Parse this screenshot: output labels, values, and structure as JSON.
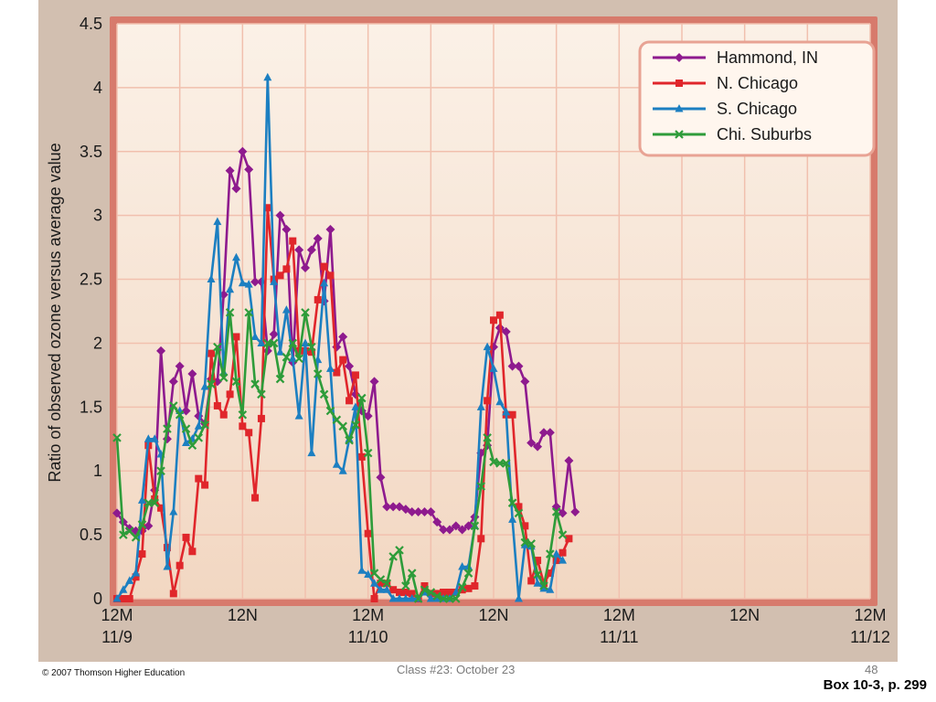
{
  "footer": {
    "copyright": "© 2007 Thomson Higher Education",
    "center_text": "Class #23:  October 23",
    "page_number": "48",
    "box_reference": "Box 10-3, p. 299"
  },
  "colors": {
    "panel_background": "#d2bfb0",
    "plot_border": "#d77a6c",
    "plot_fill_top": "#fbf1e7",
    "plot_fill_bottom": "#f2d7c2",
    "grid": "#f1c0ae",
    "legend_border": "#e8a394"
  },
  "chart_data": {
    "type": "line",
    "title": "",
    "xlabel": "",
    "ylabel": "Ratio of observed ozone versus average value",
    "xlim": [
      0,
      72
    ],
    "ylim": [
      0,
      4.5
    ],
    "grid": true,
    "legend_position": "top-right",
    "y_ticks": [
      "0",
      "0.5",
      "1",
      "1.5",
      "2",
      "2.5",
      "3",
      "3.5",
      "4",
      "4.5"
    ],
    "x_ticks": [
      {
        "x": 0,
        "line1": "12M",
        "line2": "11/9"
      },
      {
        "x": 12,
        "line1": "12N",
        "line2": ""
      },
      {
        "x": 24,
        "line1": "12M",
        "line2": "11/10"
      },
      {
        "x": 36,
        "line1": "12N",
        "line2": ""
      },
      {
        "x": 48,
        "line1": "12M",
        "line2": "11/11"
      },
      {
        "x": 60,
        "line1": "12N",
        "line2": ""
      },
      {
        "x": 72,
        "line1": "12M",
        "line2": "11/12"
      }
    ],
    "series": [
      {
        "name": "Hammond, IN",
        "color": "#8e1a8e",
        "marker": "diamond",
        "points": [
          [
            0,
            0.67
          ],
          [
            0.6,
            0.6
          ],
          [
            1.2,
            0.55
          ],
          [
            1.8,
            0.53
          ],
          [
            2.4,
            0.53
          ],
          [
            3,
            0.57
          ],
          [
            3.6,
            0.85
          ],
          [
            4.2,
            1.94
          ],
          [
            4.8,
            1.25
          ],
          [
            5.4,
            1.7
          ],
          [
            6,
            1.82
          ],
          [
            6.6,
            1.47
          ],
          [
            7.2,
            1.76
          ],
          [
            7.8,
            1.43
          ],
          [
            8.4,
            1.37
          ],
          [
            9,
            1.72
          ],
          [
            9.6,
            1.7
          ],
          [
            10.2,
            2.38
          ],
          [
            10.8,
            3.35
          ],
          [
            11.4,
            3.21
          ],
          [
            12,
            3.5
          ],
          [
            12.6,
            3.36
          ],
          [
            13.2,
            2.48
          ],
          [
            13.8,
            2.48
          ],
          [
            14.4,
            1.94
          ],
          [
            15,
            2.07
          ],
          [
            15.6,
            3.0
          ],
          [
            16.2,
            2.89
          ],
          [
            16.8,
            1.85
          ],
          [
            17.4,
            2.73
          ],
          [
            18,
            2.59
          ],
          [
            18.6,
            2.73
          ],
          [
            19.2,
            2.82
          ],
          [
            19.8,
            2.33
          ],
          [
            20.4,
            2.89
          ],
          [
            21,
            1.97
          ],
          [
            21.6,
            2.05
          ],
          [
            22.2,
            1.82
          ],
          [
            22.8,
            1.6
          ],
          [
            23.4,
            1.47
          ],
          [
            24,
            1.43
          ],
          [
            24.6,
            1.7
          ],
          [
            25.2,
            0.95
          ],
          [
            25.8,
            0.72
          ],
          [
            26.4,
            0.72
          ],
          [
            27,
            0.72
          ],
          [
            27.6,
            0.7
          ],
          [
            28.2,
            0.68
          ],
          [
            28.8,
            0.68
          ],
          [
            29.4,
            0.68
          ],
          [
            30,
            0.68
          ],
          [
            30.6,
            0.6
          ],
          [
            31.2,
            0.54
          ],
          [
            31.8,
            0.54
          ],
          [
            32.4,
            0.57
          ],
          [
            33,
            0.54
          ],
          [
            33.6,
            0.57
          ],
          [
            34.2,
            0.64
          ],
          [
            34.8,
            1.14
          ],
          [
            35.4,
            1.2
          ],
          [
            36,
            1.97
          ],
          [
            36.6,
            2.12
          ],
          [
            37.2,
            2.09
          ],
          [
            37.8,
            1.82
          ],
          [
            38.4,
            1.82
          ],
          [
            39,
            1.7
          ],
          [
            39.6,
            1.22
          ],
          [
            40.2,
            1.19
          ],
          [
            40.8,
            1.3
          ],
          [
            41.4,
            1.3
          ],
          [
            42,
            0.72
          ],
          [
            42.6,
            0.67
          ],
          [
            43.2,
            1.08
          ],
          [
            43.8,
            0.68
          ]
        ]
      },
      {
        "name": "N. Chicago",
        "color": "#e0262b",
        "marker": "square",
        "points": [
          [
            0,
            0.0
          ],
          [
            0.6,
            0.0
          ],
          [
            1.2,
            0.0
          ],
          [
            1.8,
            0.17
          ],
          [
            2.4,
            0.35
          ],
          [
            3,
            1.2
          ],
          [
            3.6,
            0.78
          ],
          [
            4.2,
            0.71
          ],
          [
            4.8,
            0.4
          ],
          [
            5.4,
            0.04
          ],
          [
            6,
            0.26
          ],
          [
            6.6,
            0.48
          ],
          [
            7.2,
            0.37
          ],
          [
            7.8,
            0.94
          ],
          [
            8.4,
            0.89
          ],
          [
            9,
            1.92
          ],
          [
            9.6,
            1.51
          ],
          [
            10.2,
            1.44
          ],
          [
            10.8,
            1.6
          ],
          [
            11.4,
            2.05
          ],
          [
            12,
            1.35
          ],
          [
            12.6,
            1.3
          ],
          [
            13.2,
            0.79
          ],
          [
            13.8,
            1.41
          ],
          [
            14.4,
            3.06
          ],
          [
            15,
            2.5
          ],
          [
            15.6,
            2.53
          ],
          [
            16.2,
            2.58
          ],
          [
            16.8,
            2.8
          ],
          [
            17.4,
            1.94
          ],
          [
            18,
            1.94
          ],
          [
            18.6,
            1.93
          ],
          [
            19.2,
            2.34
          ],
          [
            19.8,
            2.6
          ],
          [
            20.4,
            2.53
          ],
          [
            21,
            1.77
          ],
          [
            21.6,
            1.87
          ],
          [
            22.2,
            1.55
          ],
          [
            22.8,
            1.75
          ],
          [
            23.4,
            1.11
          ],
          [
            24,
            0.51
          ],
          [
            24.6,
            0.0
          ],
          [
            25.2,
            0.12
          ],
          [
            25.8,
            0.12
          ],
          [
            26.4,
            0.07
          ],
          [
            27,
            0.05
          ],
          [
            27.6,
            0.05
          ],
          [
            28.2,
            0.04
          ],
          [
            28.8,
            0.0
          ],
          [
            29.4,
            0.1
          ],
          [
            30,
            0.04
          ],
          [
            30.6,
            0.04
          ],
          [
            31.2,
            0.05
          ],
          [
            31.8,
            0.05
          ],
          [
            32.4,
            0.05
          ],
          [
            33,
            0.07
          ],
          [
            33.6,
            0.08
          ],
          [
            34.2,
            0.1
          ],
          [
            34.8,
            0.47
          ],
          [
            35.4,
            1.55
          ],
          [
            36,
            2.18
          ],
          [
            36.6,
            2.22
          ],
          [
            37.2,
            1.44
          ],
          [
            37.8,
            1.44
          ],
          [
            38.4,
            0.72
          ],
          [
            39,
            0.57
          ],
          [
            39.6,
            0.14
          ],
          [
            40.2,
            0.3
          ],
          [
            40.8,
            0.12
          ],
          [
            41.4,
            0.2
          ],
          [
            42,
            0.3
          ],
          [
            42.6,
            0.36
          ],
          [
            43.2,
            0.47
          ]
        ]
      },
      {
        "name": "S. Chicago",
        "color": "#1c7fc1",
        "marker": "triangle",
        "points": [
          [
            0,
            0.0
          ],
          [
            0.6,
            0.07
          ],
          [
            1.2,
            0.14
          ],
          [
            1.8,
            0.2
          ],
          [
            2.4,
            0.77
          ],
          [
            3,
            1.25
          ],
          [
            3.6,
            1.25
          ],
          [
            4.2,
            1.13
          ],
          [
            4.8,
            0.25
          ],
          [
            5.4,
            0.68
          ],
          [
            6,
            1.47
          ],
          [
            6.6,
            1.22
          ],
          [
            7.2,
            1.25
          ],
          [
            7.8,
            1.35
          ],
          [
            8.4,
            1.66
          ],
          [
            9,
            2.5
          ],
          [
            9.6,
            2.95
          ],
          [
            10.2,
            1.77
          ],
          [
            10.8,
            2.42
          ],
          [
            11.4,
            2.67
          ],
          [
            12,
            2.47
          ],
          [
            12.6,
            2.46
          ],
          [
            13.2,
            2.05
          ],
          [
            13.8,
            2.0
          ],
          [
            14.4,
            4.08
          ],
          [
            15,
            2.48
          ],
          [
            15.6,
            1.93
          ],
          [
            16.2,
            2.26
          ],
          [
            16.8,
            1.88
          ],
          [
            17.4,
            1.43
          ],
          [
            18,
            2.0
          ],
          [
            18.6,
            1.14
          ],
          [
            19.2,
            1.87
          ],
          [
            19.8,
            2.47
          ],
          [
            20.4,
            1.8
          ],
          [
            21,
            1.05
          ],
          [
            21.6,
            1.0
          ],
          [
            22.2,
            1.25
          ],
          [
            22.8,
            1.5
          ],
          [
            23.4,
            0.22
          ],
          [
            24,
            0.19
          ],
          [
            24.6,
            0.12
          ],
          [
            25.2,
            0.07
          ],
          [
            25.8,
            0.07
          ],
          [
            26.4,
            0.0
          ],
          [
            27,
            0.0
          ],
          [
            27.6,
            0.0
          ],
          [
            28.2,
            0.0
          ],
          [
            28.8,
            0.0
          ],
          [
            29.4,
            0.05
          ],
          [
            30,
            0.0
          ],
          [
            30.6,
            0.0
          ],
          [
            31.2,
            0.0
          ],
          [
            31.8,
            0.0
          ],
          [
            32.4,
            0.05
          ],
          [
            33,
            0.25
          ],
          [
            33.6,
            0.25
          ],
          [
            34.2,
            0.57
          ],
          [
            34.8,
            1.5
          ],
          [
            35.4,
            1.97
          ],
          [
            36,
            1.8
          ],
          [
            36.6,
            1.54
          ],
          [
            37.2,
            1.46
          ],
          [
            37.8,
            0.62
          ],
          [
            38.4,
            0.0
          ],
          [
            39,
            0.42
          ],
          [
            39.6,
            0.41
          ],
          [
            40.2,
            0.12
          ],
          [
            40.8,
            0.08
          ],
          [
            41.4,
            0.07
          ],
          [
            42,
            0.35
          ],
          [
            42.6,
            0.3
          ]
        ]
      },
      {
        "name": "Chi. Suburbs",
        "color": "#2e9c3a",
        "marker": "x",
        "points": [
          [
            0,
            1.26
          ],
          [
            0.6,
            0.5
          ],
          [
            1.2,
            0.53
          ],
          [
            1.8,
            0.48
          ],
          [
            2.4,
            0.58
          ],
          [
            3,
            0.75
          ],
          [
            3.6,
            0.75
          ],
          [
            4.2,
            1.0
          ],
          [
            4.8,
            1.33
          ],
          [
            5.4,
            1.51
          ],
          [
            6,
            1.44
          ],
          [
            6.6,
            1.33
          ],
          [
            7.2,
            1.2
          ],
          [
            7.8,
            1.26
          ],
          [
            8.4,
            1.36
          ],
          [
            9,
            1.68
          ],
          [
            9.6,
            1.97
          ],
          [
            10.2,
            1.73
          ],
          [
            10.8,
            2.24
          ],
          [
            11.4,
            1.7
          ],
          [
            12,
            1.44
          ],
          [
            12.6,
            2.24
          ],
          [
            13.2,
            1.68
          ],
          [
            13.8,
            1.6
          ],
          [
            14.4,
            2.0
          ],
          [
            15,
            2.0
          ],
          [
            15.6,
            1.72
          ],
          [
            16.2,
            1.89
          ],
          [
            16.8,
            2.0
          ],
          [
            17.4,
            1.88
          ],
          [
            18,
            2.24
          ],
          [
            18.6,
            1.97
          ],
          [
            19.2,
            1.76
          ],
          [
            19.8,
            1.6
          ],
          [
            20.4,
            1.47
          ],
          [
            21,
            1.4
          ],
          [
            21.6,
            1.35
          ],
          [
            22.2,
            1.24
          ],
          [
            22.8,
            1.36
          ],
          [
            23.4,
            1.57
          ],
          [
            24,
            1.14
          ],
          [
            24.6,
            0.2
          ],
          [
            25.2,
            0.15
          ],
          [
            25.8,
            0.12
          ],
          [
            26.4,
            0.33
          ],
          [
            27,
            0.38
          ],
          [
            27.6,
            0.1
          ],
          [
            28.2,
            0.2
          ],
          [
            28.8,
            0.0
          ],
          [
            29.4,
            0.07
          ],
          [
            30,
            0.05
          ],
          [
            30.6,
            0.02
          ],
          [
            31.2,
            0.0
          ],
          [
            31.8,
            0.0
          ],
          [
            32.4,
            0.0
          ],
          [
            33,
            0.09
          ],
          [
            33.6,
            0.2
          ],
          [
            34.2,
            0.57
          ],
          [
            34.8,
            0.88
          ],
          [
            35.4,
            1.26
          ],
          [
            36,
            1.07
          ],
          [
            36.6,
            1.06
          ],
          [
            37.2,
            1.06
          ],
          [
            37.8,
            0.75
          ],
          [
            38.4,
            0.67
          ],
          [
            39,
            0.44
          ],
          [
            39.6,
            0.43
          ],
          [
            40.2,
            0.19
          ],
          [
            40.8,
            0.1
          ],
          [
            41.4,
            0.35
          ],
          [
            42,
            0.68
          ],
          [
            42.6,
            0.5
          ]
        ]
      }
    ]
  }
}
